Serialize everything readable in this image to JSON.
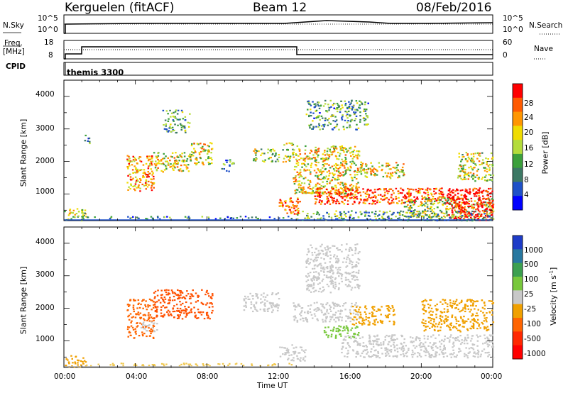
{
  "header": {
    "radar": "Kerguelen (fitACF)",
    "beam": "Beam 12",
    "date": "08/Feb/2016"
  },
  "top_panels": {
    "nsky_label": "N.Sky",
    "nsky_ticks": [
      "10^5",
      "10^0"
    ],
    "nsearch_label": "N.Search",
    "nsearch_ticks": [
      "10^5",
      "10^0"
    ],
    "freq_label": "Freq.",
    "freq_unit": "[MHz]",
    "freq_ticks": [
      "18",
      "8"
    ],
    "nave_label": "Nave",
    "nave_ticks": [
      "60",
      "0"
    ],
    "cpid_label": "CPID",
    "cpid_value": "themis 3300"
  },
  "chart_data": [
    {
      "type": "heatmap",
      "name": "power-panel",
      "ylabel": "Slant Range [km]",
      "yticks": [
        "4000",
        "3000",
        "2000",
        "1000"
      ],
      "ylim": [
        180,
        4500
      ],
      "colorbar_label": "Power [dB]",
      "colorbar_ticks": [
        "28",
        "24",
        "20",
        "16",
        "12",
        "8",
        "4"
      ],
      "colorbar_colors": [
        "#ff0000",
        "#ff5a00",
        "#ff9600",
        "#f0dc00",
        "#b4dc3c",
        "#3ca03c",
        "#3c7864",
        "#1e50c8",
        "#0000ff"
      ],
      "scatter_regions": [
        {
          "t": [
            0.0,
            1.2
          ],
          "r": [
            200,
            600
          ],
          "level": 0.55
        },
        {
          "t": [
            1.2,
            12.8
          ],
          "r": [
            250,
            330
          ],
          "level": 0.25
        },
        {
          "t": [
            1.1,
            1.4
          ],
          "r": [
            2500,
            2900
          ],
          "level": 0.3
        },
        {
          "t": [
            3.5,
            5.0
          ],
          "r": [
            1100,
            2200
          ],
          "level": 0.7
        },
        {
          "t": [
            5.0,
            7.0
          ],
          "r": [
            1700,
            2300
          ],
          "level": 0.6
        },
        {
          "t": [
            7.0,
            8.3
          ],
          "r": [
            1900,
            2600
          ],
          "level": 0.6
        },
        {
          "t": [
            5.5,
            7.0
          ],
          "r": [
            2900,
            3600
          ],
          "level": 0.35
        },
        {
          "t": [
            8.8,
            9.5
          ],
          "r": [
            1700,
            2100
          ],
          "level": 0.3
        },
        {
          "t": [
            10.5,
            12.0
          ],
          "r": [
            2000,
            2400
          ],
          "level": 0.5
        },
        {
          "t": [
            12.2,
            12.8
          ],
          "r": [
            2000,
            2600
          ],
          "level": 0.55
        },
        {
          "t": [
            12.0,
            13.2
          ],
          "r": [
            400,
            900
          ],
          "level": 0.8
        },
        {
          "t": [
            12.8,
            16.5
          ],
          "r": [
            1000,
            2500
          ],
          "level": 0.6
        },
        {
          "t": [
            13.5,
            17.0
          ],
          "r": [
            3000,
            3900
          ],
          "level": 0.35
        },
        {
          "t": [
            14.0,
            21.5
          ],
          "r": [
            700,
            1200
          ],
          "level": 0.85
        },
        {
          "t": [
            16.5,
            19.0
          ],
          "r": [
            1500,
            2000
          ],
          "level": 0.6
        },
        {
          "t": [
            19.0,
            24.0
          ],
          "r": [
            300,
            900
          ],
          "level": 0.5
        },
        {
          "t": [
            21.5,
            24.0
          ],
          "r": [
            200,
            1200
          ],
          "level": 1.0
        },
        {
          "t": [
            22.0,
            24.0
          ],
          "r": [
            1400,
            2300
          ],
          "level": 0.55
        },
        {
          "t": [
            13.0,
            24.0
          ],
          "r": [
            200,
            500
          ],
          "level": 0.35
        }
      ]
    },
    {
      "type": "heatmap",
      "name": "velocity-panel",
      "ylabel": "Slant Range [km]",
      "yticks": [
        "4000",
        "3000",
        "2000",
        "1000"
      ],
      "ylim": [
        180,
        4500
      ],
      "colorbar_label": "Velocity [m s",
      "colorbar_sup": "-1",
      "colorbar_ticks": [
        "1000",
        "500",
        "100",
        "25",
        "-25",
        "-100",
        "-500",
        "-1000"
      ],
      "colorbar_colors": [
        "#1e3cc8",
        "#2878a0",
        "#3ca050",
        "#78c83c",
        "#c8c8c8",
        "#f0a000",
        "#ff6400",
        "#ff2800",
        "#ff0000"
      ],
      "scatter_regions": [
        {
          "t": [
            0.0,
            1.2
          ],
          "r": [
            200,
            600
          ],
          "color": "#f0a000"
        },
        {
          "t": [
            1.2,
            12.8
          ],
          "r": [
            250,
            330
          ],
          "color": "#f0c850"
        },
        {
          "t": [
            3.5,
            5.0
          ],
          "r": [
            1100,
            2300
          ],
          "color": "#ff6400"
        },
        {
          "t": [
            5.0,
            8.3
          ],
          "r": [
            1700,
            2600
          ],
          "color": "#ff5000"
        },
        {
          "t": [
            4.2,
            5.2
          ],
          "r": [
            1300,
            1600
          ],
          "color": "#c8c8c8"
        },
        {
          "t": [
            10.0,
            12.0
          ],
          "r": [
            1900,
            2500
          ],
          "color": "#c8c8c8"
        },
        {
          "t": [
            12.8,
            16.5
          ],
          "r": [
            1600,
            2200
          ],
          "color": "#c8c8c8"
        },
        {
          "t": [
            13.5,
            16.5
          ],
          "r": [
            2500,
            4000
          ],
          "color": "#c8c8c8"
        },
        {
          "t": [
            15.5,
            24.0
          ],
          "r": [
            500,
            1200
          ],
          "color": "#c8c8c8"
        },
        {
          "t": [
            16.0,
            18.5
          ],
          "r": [
            1500,
            2100
          ],
          "color": "#f0a000"
        },
        {
          "t": [
            14.5,
            16.5
          ],
          "r": [
            1100,
            1500
          ],
          "color": "#78c83c"
        },
        {
          "t": [
            20.0,
            24.0
          ],
          "r": [
            1300,
            2300
          ],
          "color": "#f0a000"
        },
        {
          "t": [
            12.0,
            13.5
          ],
          "r": [
            400,
            900
          ],
          "color": "#c8c8c8"
        }
      ]
    }
  ],
  "x_axis": {
    "ticks": [
      "00:00",
      "04:00",
      "08:00",
      "12:00",
      "16:00",
      "20:00",
      "00:00"
    ],
    "label": "Time UT"
  }
}
